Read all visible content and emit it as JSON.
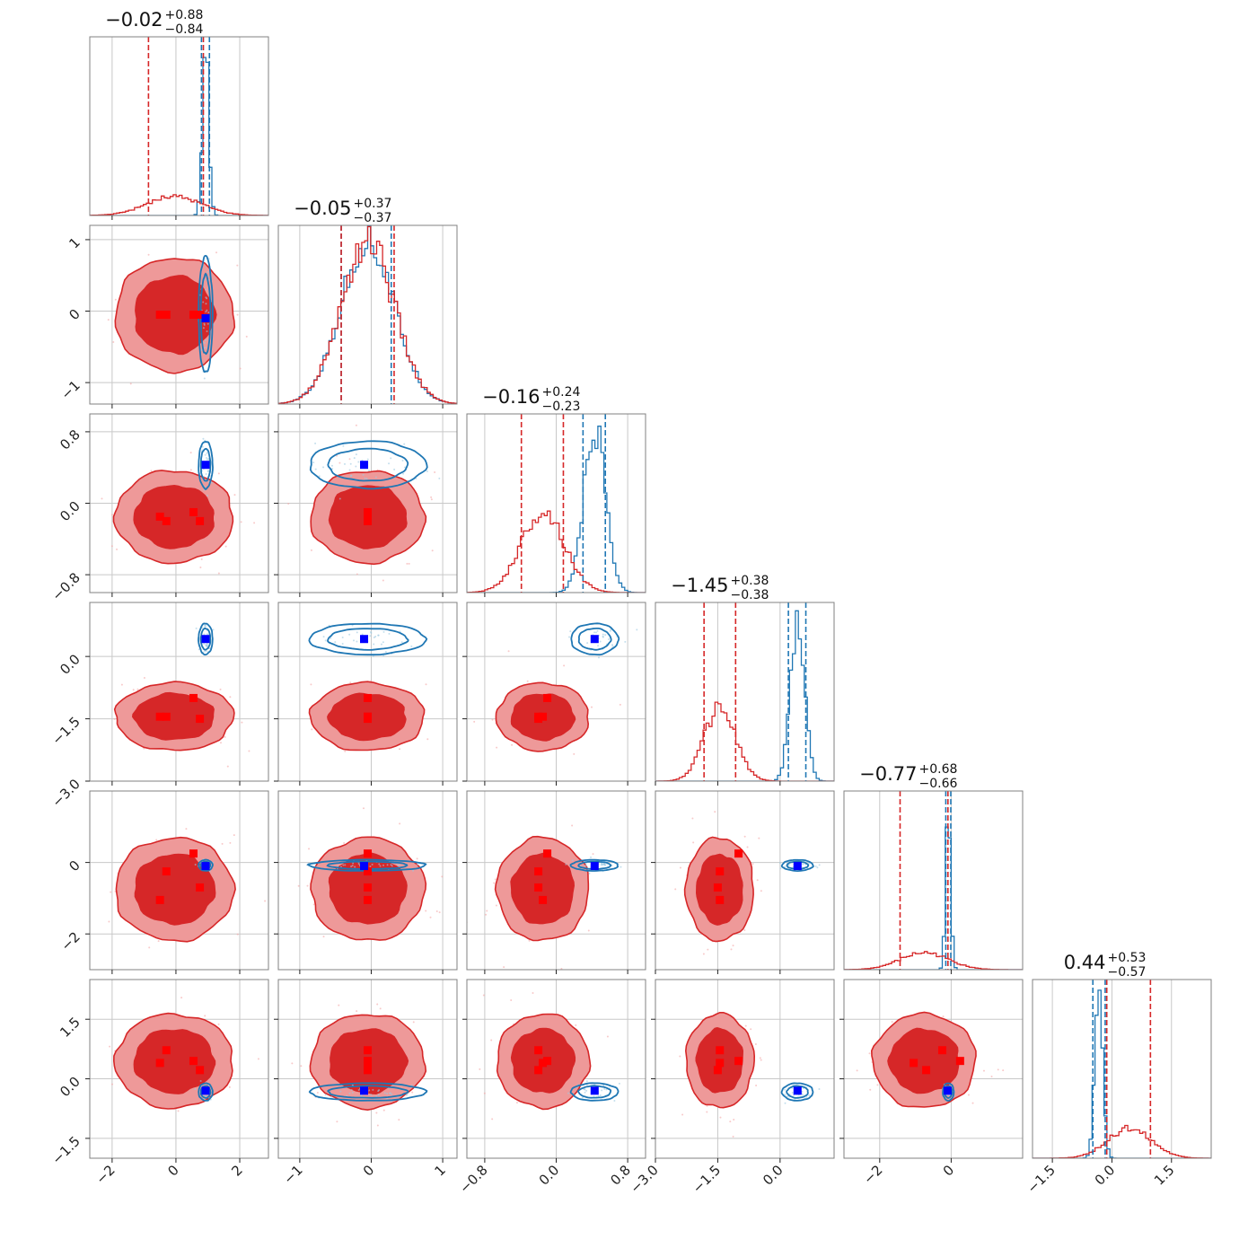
{
  "chart_data": {
    "type": "corner",
    "parameters": 6,
    "colors": {
      "red": "#d62728",
      "red_fill_dark": "#d62728",
      "red_fill_light": "#ee9999",
      "blue": "#1f77b4",
      "truth_red": "#ff0000",
      "truth_blue": "#0000ff",
      "grid": "#c8c8c8",
      "frame": "#808080"
    },
    "axis_ranges": [
      [
        -2.7,
        2.9
      ],
      [
        -1.3,
        1.2
      ],
      [
        -1.0,
        1.0
      ],
      [
        -3.0,
        1.3
      ],
      [
        -3.0,
        2.0
      ],
      [
        -2.0,
        2.5
      ]
    ],
    "ticks": [
      {
        "values": [
          -2,
          0,
          2
        ],
        "labels": [
          "−2",
          "0",
          "2"
        ]
      },
      {
        "values": [
          -1,
          0,
          1
        ],
        "labels": [
          "−1",
          "0",
          "1"
        ]
      },
      {
        "values": [
          -0.8,
          0.0,
          0.8
        ],
        "labels": [
          "−0.8",
          "0.0",
          "0.8"
        ]
      },
      {
        "values": [
          -3.0,
          -1.5,
          0.0
        ],
        "labels": [
          "−3.0",
          "−1.5",
          "0.0"
        ]
      },
      {
        "values": [
          -2,
          0
        ],
        "labels": [
          "−2",
          "0"
        ]
      },
      {
        "values": [
          -1.5,
          0.0,
          1.5
        ],
        "labels": [
          "−1.5",
          "0.0",
          "1.5"
        ]
      }
    ],
    "titles": [
      {
        "value": "−0.02",
        "plus": "+0.88",
        "minus": "−0.84"
      },
      {
        "value": "−0.05",
        "plus": "+0.37",
        "minus": "−0.37"
      },
      {
        "value": "−0.16",
        "plus": "+0.24",
        "minus": "−0.23"
      },
      {
        "value": "−1.45",
        "plus": "+0.38",
        "minus": "−0.38"
      },
      {
        "value": "−0.77",
        "plus": "+0.68",
        "minus": "−0.66"
      },
      {
        "value": "0.44",
        "plus": "+0.53",
        "minus": "−0.57"
      }
    ],
    "red_posterior": {
      "means": [
        -0.05,
        -0.05,
        -0.15,
        -1.45,
        -0.75,
        0.45
      ],
      "sds": [
        0.86,
        0.37,
        0.24,
        0.38,
        0.67,
        0.55
      ],
      "quantiles": [
        [
          -0.86,
          0.86
        ],
        [
          -0.42,
          0.32
        ],
        [
          -0.39,
          0.08
        ],
        [
          -1.83,
          -1.07
        ],
        [
          -1.43,
          -0.09
        ],
        [
          -0.13,
          0.97
        ]
      ]
    },
    "blue_posterior": {
      "means": [
        0.93,
        -0.05,
        0.43,
        0.42,
        -0.08,
        -0.33
      ],
      "sds": [
        0.1,
        0.37,
        0.12,
        0.17,
        0.07,
        0.1
      ],
      "quantiles": [
        [
          0.8,
          1.05
        ],
        [
          -0.42,
          0.28
        ],
        [
          0.3,
          0.55
        ],
        [
          0.2,
          0.62
        ],
        [
          -0.15,
          -0.01
        ],
        [
          -0.48,
          -0.17
        ]
      ]
    },
    "truth_red_points": [
      [
        -0.5,
        -0.05,
        -0.15,
        -1.45,
        -1.05,
        0.4
      ],
      [
        -0.3,
        -0.05,
        -0.2,
        -1.45,
        -0.25,
        0.72
      ],
      [
        0.55,
        -0.05,
        -0.1,
        -1.0,
        0.25,
        0.45
      ],
      [
        0.75,
        -0.05,
        -0.2,
        -1.5,
        -0.7,
        0.22
      ]
    ],
    "truth_blue_point": [
      0.93,
      -0.1,
      0.43,
      0.42,
      -0.1,
      -0.3
    ]
  }
}
